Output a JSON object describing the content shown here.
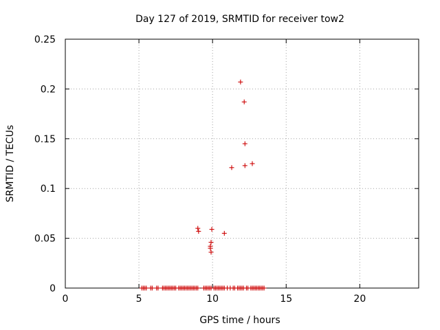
{
  "chart_data": {
    "type": "scatter",
    "title": "Day 127 of 2019, SRMTID for receiver tow2",
    "xlabel": "GPS time / hours",
    "ylabel": "SRMTID / TECUs",
    "xlim": [
      0,
      24
    ],
    "ylim": [
      0,
      0.25
    ],
    "xticks": [
      0,
      5,
      10,
      15,
      20
    ],
    "xtick_labels": [
      "0",
      "5",
      "10",
      "15",
      "20"
    ],
    "yticks": [
      0,
      0.05,
      0.1,
      0.15,
      0.2,
      0.25
    ],
    "ytick_labels": [
      "0",
      "0.05",
      "0.1",
      "0.15",
      "0.2",
      "0.25"
    ],
    "grid": true,
    "marker": "+",
    "color": "#cc0000",
    "series": [
      {
        "name": "SRMTID",
        "points": [
          {
            "x": 11.9,
            "y": 0.207
          },
          {
            "x": 12.15,
            "y": 0.187
          },
          {
            "x": 12.2,
            "y": 0.145
          },
          {
            "x": 12.7,
            "y": 0.125
          },
          {
            "x": 12.2,
            "y": 0.123
          },
          {
            "x": 11.3,
            "y": 0.121
          },
          {
            "x": 9.0,
            "y": 0.06
          },
          {
            "x": 9.95,
            "y": 0.059
          },
          {
            "x": 9.05,
            "y": 0.057
          },
          {
            "x": 10.8,
            "y": 0.055
          },
          {
            "x": 9.9,
            "y": 0.046
          },
          {
            "x": 9.85,
            "y": 0.042
          },
          {
            "x": 9.85,
            "y": 0.04
          },
          {
            "x": 9.9,
            "y": 0.036
          },
          {
            "x": 5.2,
            "y": 0
          },
          {
            "x": 5.3,
            "y": 0
          },
          {
            "x": 5.4,
            "y": 0
          },
          {
            "x": 5.5,
            "y": 0
          },
          {
            "x": 5.8,
            "y": 0
          },
          {
            "x": 5.9,
            "y": 0
          },
          {
            "x": 6.2,
            "y": 0
          },
          {
            "x": 6.3,
            "y": 0
          },
          {
            "x": 6.6,
            "y": 0
          },
          {
            "x": 6.7,
            "y": 0
          },
          {
            "x": 6.8,
            "y": 0
          },
          {
            "x": 6.9,
            "y": 0
          },
          {
            "x": 7.0,
            "y": 0
          },
          {
            "x": 7.1,
            "y": 0
          },
          {
            "x": 7.2,
            "y": 0
          },
          {
            "x": 7.3,
            "y": 0
          },
          {
            "x": 7.4,
            "y": 0
          },
          {
            "x": 7.5,
            "y": 0
          },
          {
            "x": 7.7,
            "y": 0
          },
          {
            "x": 7.8,
            "y": 0
          },
          {
            "x": 7.9,
            "y": 0
          },
          {
            "x": 8.0,
            "y": 0
          },
          {
            "x": 8.1,
            "y": 0
          },
          {
            "x": 8.2,
            "y": 0
          },
          {
            "x": 8.3,
            "y": 0
          },
          {
            "x": 8.4,
            "y": 0
          },
          {
            "x": 8.5,
            "y": 0
          },
          {
            "x": 8.6,
            "y": 0
          },
          {
            "x": 8.7,
            "y": 0
          },
          {
            "x": 8.8,
            "y": 0
          },
          {
            "x": 8.9,
            "y": 0
          },
          {
            "x": 9.0,
            "y": 0
          },
          {
            "x": 9.4,
            "y": 0
          },
          {
            "x": 9.5,
            "y": 0
          },
          {
            "x": 9.6,
            "y": 0
          },
          {
            "x": 9.7,
            "y": 0
          },
          {
            "x": 9.8,
            "y": 0
          },
          {
            "x": 9.9,
            "y": 0
          },
          {
            "x": 10.1,
            "y": 0
          },
          {
            "x": 10.2,
            "y": 0
          },
          {
            "x": 10.3,
            "y": 0
          },
          {
            "x": 10.4,
            "y": 0
          },
          {
            "x": 10.5,
            "y": 0
          },
          {
            "x": 10.6,
            "y": 0
          },
          {
            "x": 10.7,
            "y": 0
          },
          {
            "x": 10.8,
            "y": 0
          },
          {
            "x": 11.0,
            "y": 0
          },
          {
            "x": 11.2,
            "y": 0
          },
          {
            "x": 11.4,
            "y": 0
          },
          {
            "x": 11.5,
            "y": 0
          },
          {
            "x": 11.7,
            "y": 0
          },
          {
            "x": 11.8,
            "y": 0
          },
          {
            "x": 11.9,
            "y": 0
          },
          {
            "x": 12.0,
            "y": 0
          },
          {
            "x": 12.1,
            "y": 0
          },
          {
            "x": 12.3,
            "y": 0
          },
          {
            "x": 12.4,
            "y": 0
          },
          {
            "x": 12.6,
            "y": 0
          },
          {
            "x": 12.7,
            "y": 0
          },
          {
            "x": 12.8,
            "y": 0
          },
          {
            "x": 12.9,
            "y": 0
          },
          {
            "x": 13.0,
            "y": 0
          },
          {
            "x": 13.1,
            "y": 0
          },
          {
            "x": 13.2,
            "y": 0
          },
          {
            "x": 13.3,
            "y": 0
          },
          {
            "x": 13.4,
            "y": 0
          },
          {
            "x": 13.5,
            "y": 0
          }
        ]
      }
    ]
  }
}
